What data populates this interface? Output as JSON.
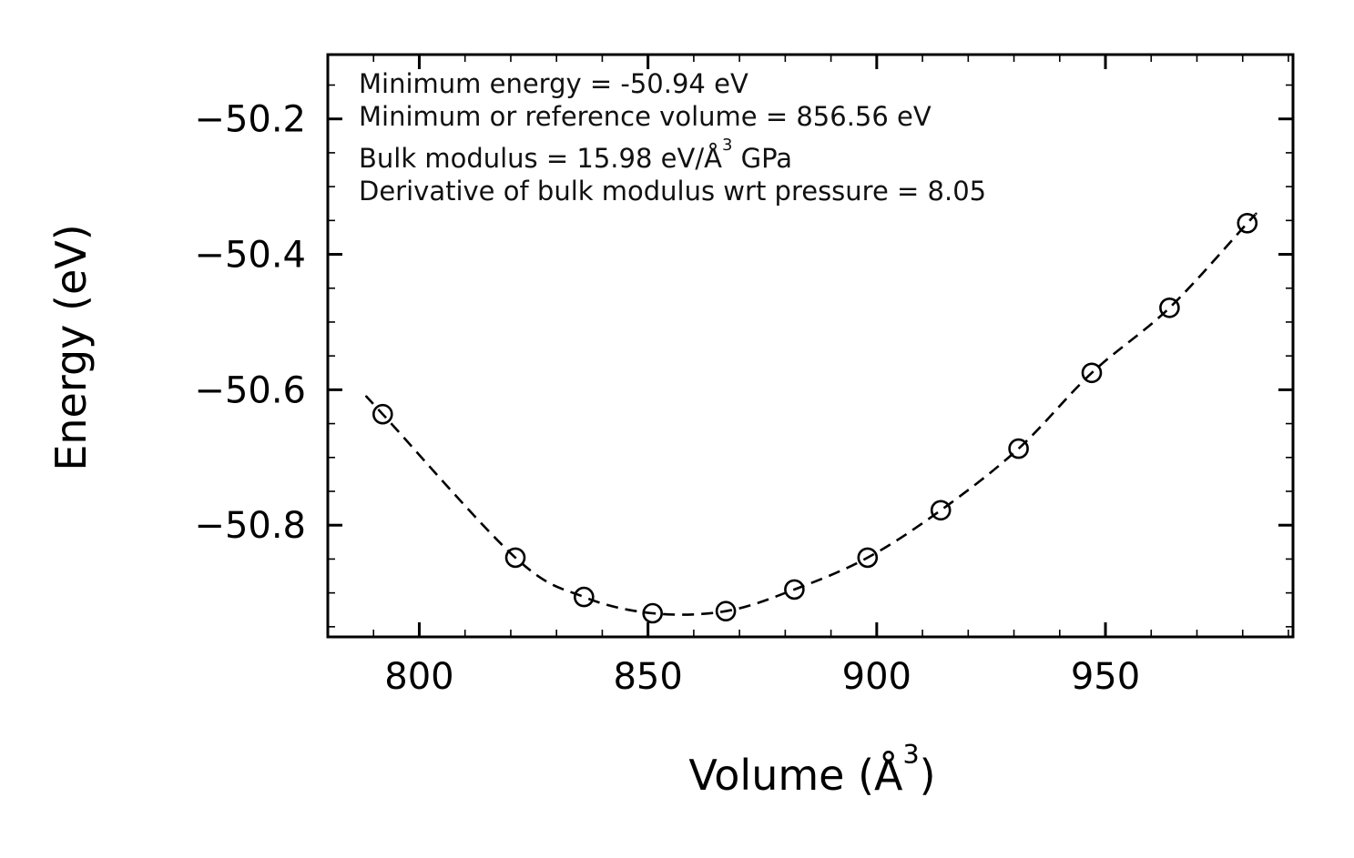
{
  "chart_data": {
    "type": "scatter",
    "title": "",
    "ylabel": "Energy (eV)",
    "xlabel": {
      "before": "Volume (Å",
      "sup": "3",
      "after": ")"
    },
    "x": [
      792,
      821,
      836,
      851,
      867,
      882,
      898,
      914,
      931,
      947,
      964,
      981
    ],
    "y": [
      -50.636,
      -50.848,
      -50.906,
      -50.93,
      -50.927,
      -50.895,
      -50.848,
      -50.778,
      -50.687,
      -50.575,
      -50.479,
      -50.354
    ],
    "xlim": [
      780,
      991
    ],
    "ylim": [
      -50.965,
      -50.105
    ],
    "xticks": [
      800,
      850,
      900,
      950
    ],
    "xtick_labels": [
      "800",
      "850",
      "900",
      "950"
    ],
    "yticks": [
      -50.2,
      -50.4,
      -50.6,
      -50.8
    ],
    "ytick_labels": [
      "−50.2",
      "−50.4",
      "−50.6",
      "−50.8"
    ],
    "x_minor_step": 10,
    "y_minor_step": 0.05,
    "grid": "off",
    "line_style": "dashed",
    "marker": "open-circle",
    "color": "#000000",
    "legend": "none",
    "annotations": {
      "line1": "Minimum energy = -50.94 eV",
      "line2": "Minimum or reference volume = 856.56 eV",
      "line3": {
        "before": "Bulk modulus = 15.98 eV/Å",
        "sup": "3",
        "after": " GPa"
      },
      "line4": "Derivative of bulk modulus wrt pressure = 8.05"
    }
  }
}
